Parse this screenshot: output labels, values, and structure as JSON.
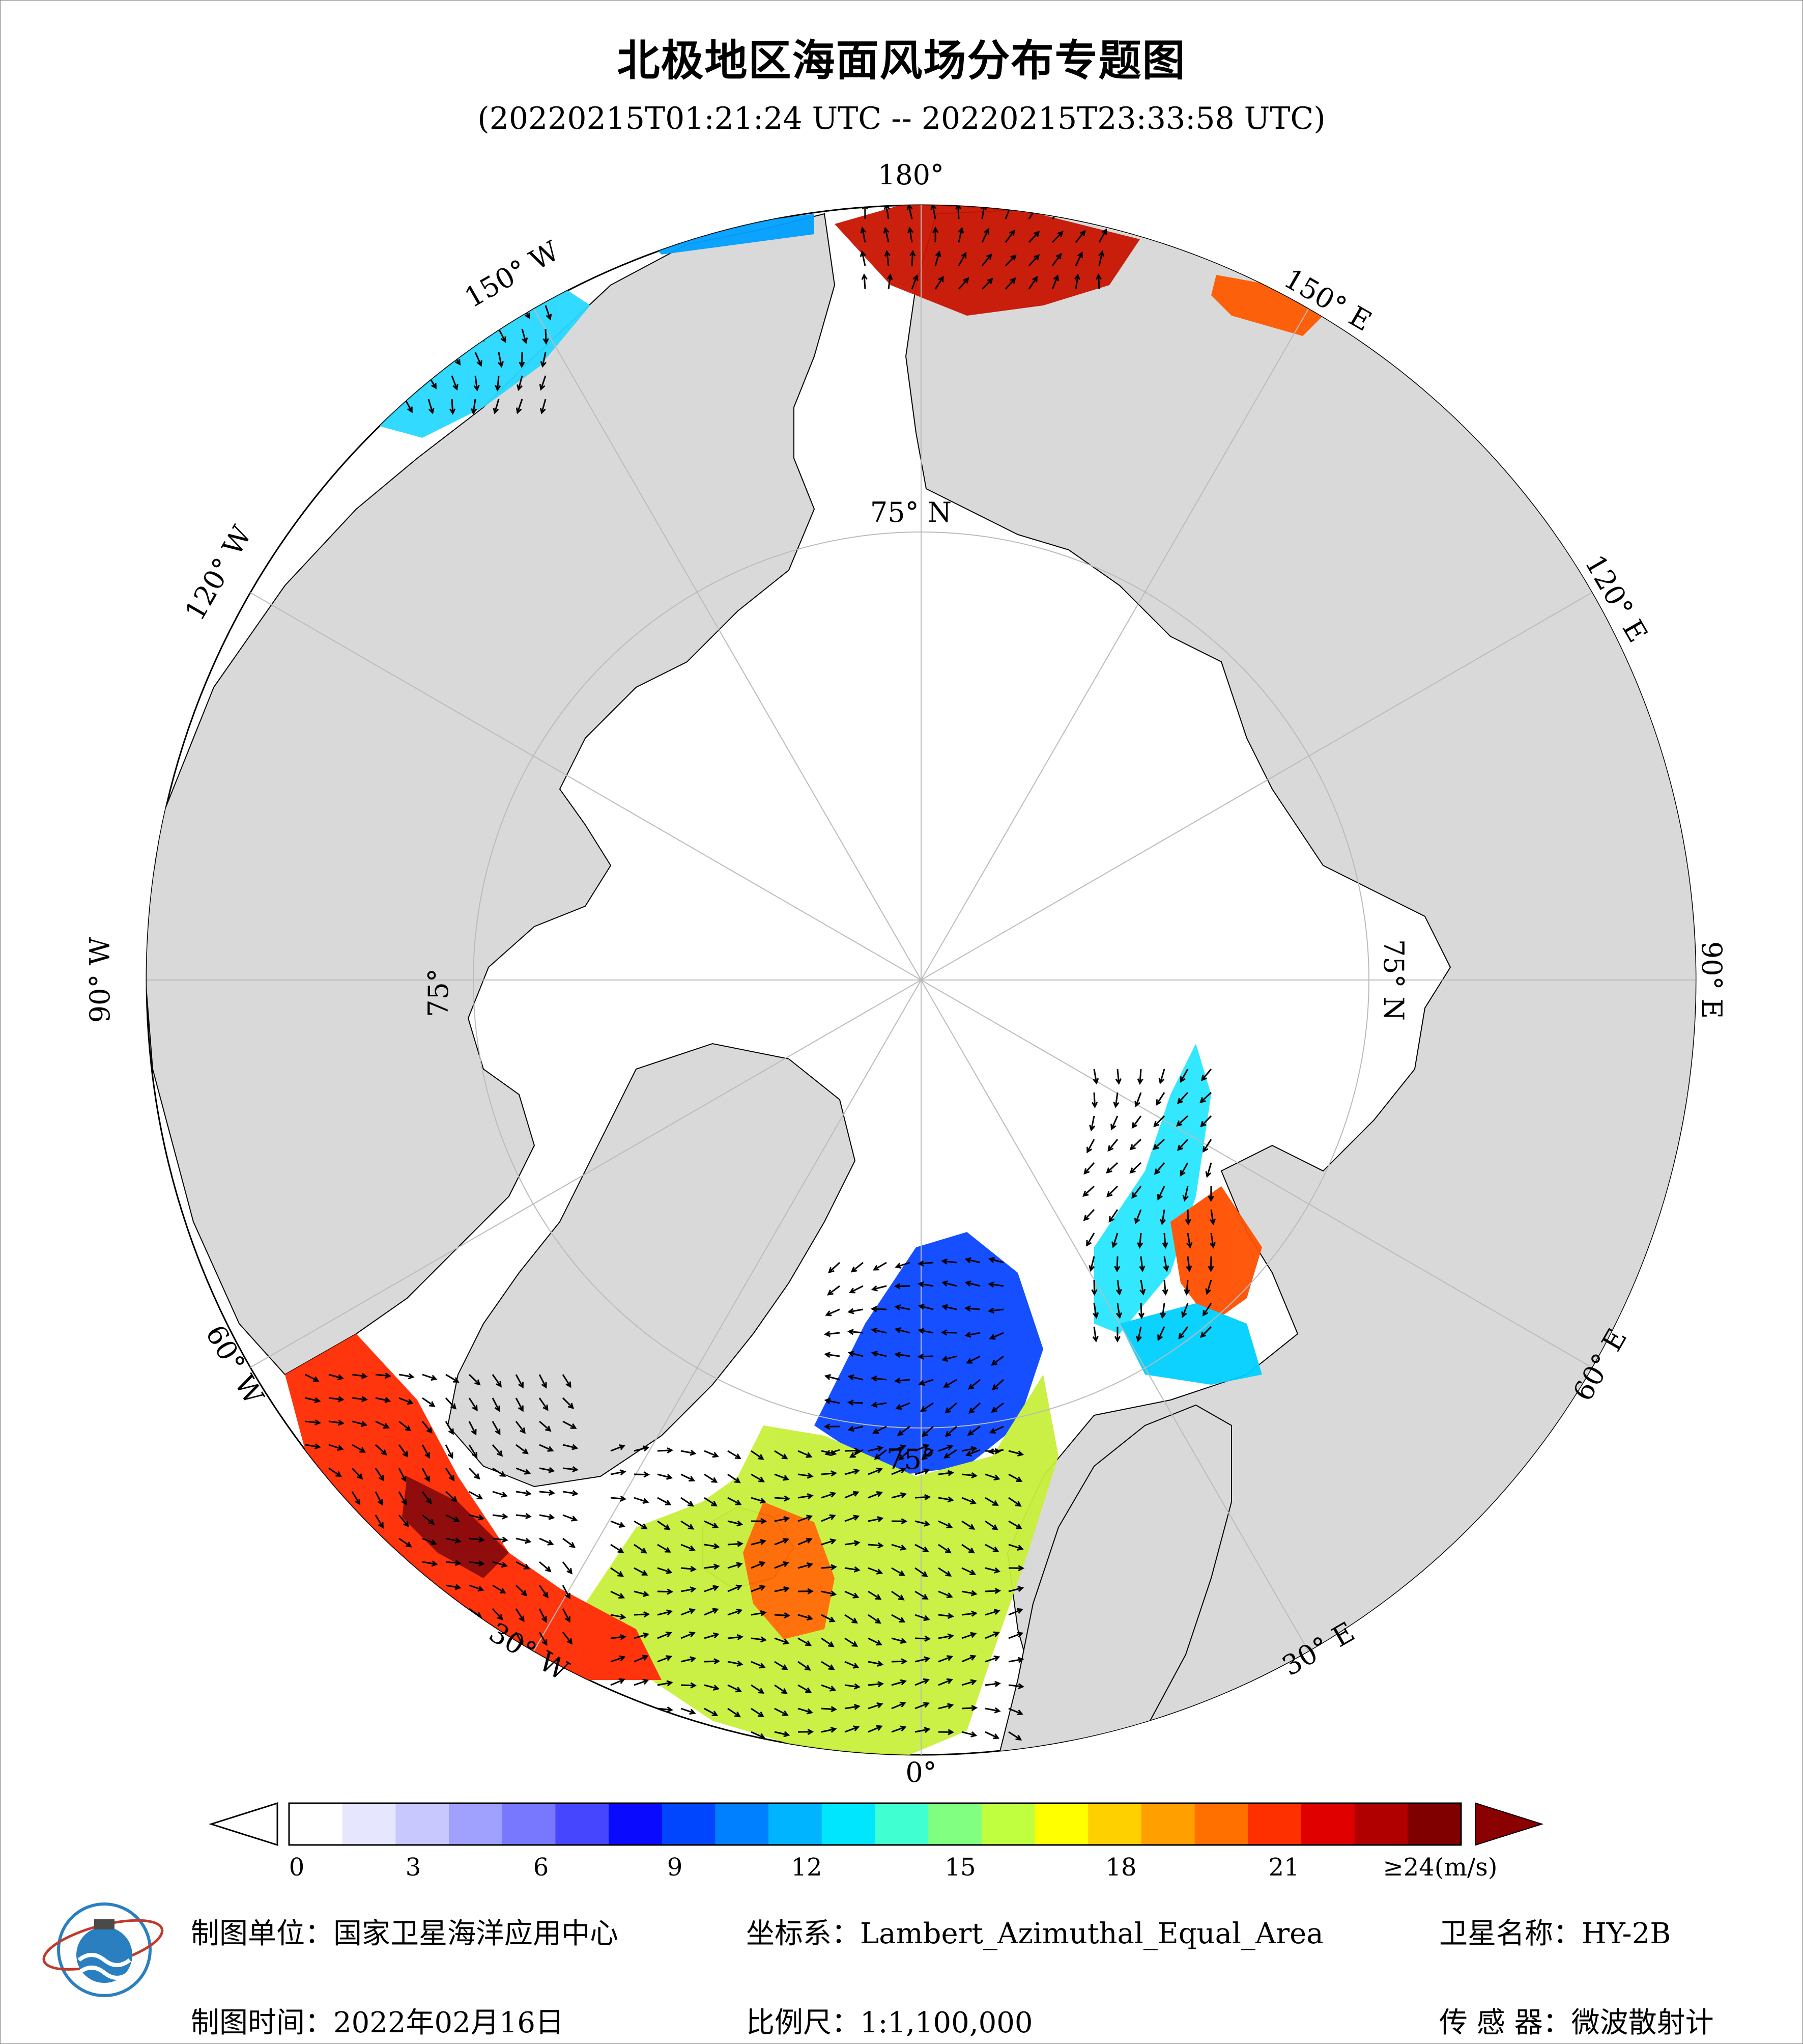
{
  "title": "北极地区海面风场分布专题图",
  "time_range": "(20220215T01:21:24 UTC -- 20220215T23:33:58 UTC)",
  "graticule": {
    "longitude_labels": [
      "180°",
      "150° E",
      "120° E",
      "90° E",
      "60° E",
      "30° E",
      "0°",
      "30° W",
      "60° W",
      "90° W",
      "120° W",
      "150° W"
    ],
    "latitude_labels": [
      "75° N",
      "75° N",
      "75°",
      "75°"
    ]
  },
  "colorbar": {
    "unit": "(m/s)",
    "ticks": [
      "0",
      "3",
      "6",
      "9",
      "12",
      "15",
      "18",
      "21",
      "≥24"
    ],
    "colors": [
      "#ffffff",
      "#e6e6ff",
      "#c8c8ff",
      "#a0a0ff",
      "#7878ff",
      "#4646ff",
      "#0a0aff",
      "#0046ff",
      "#0080ff",
      "#00b4ff",
      "#00e6ff",
      "#40ffd0",
      "#80ff80",
      "#c0ff40",
      "#ffff00",
      "#ffd000",
      "#ffa000",
      "#ff7000",
      "#ff3000",
      "#e00000",
      "#b00000",
      "#800000"
    ],
    "overflow_color": "#8b0000"
  },
  "map_colors": {
    "land": "#d9d9d9",
    "sea_ice": "#ffffff",
    "graticule": "#bbbbbb"
  },
  "footer": {
    "unit_label": "制图单位：国家卫星海洋应用中心",
    "date_label": "制图时间：2022年02月16日",
    "projection_label": "坐标系：Lambert_Azimuthal_Equal_Area",
    "scale_label": "比例尺：1:1,100,000",
    "satellite_label": "卫星名称：HY-2B",
    "sensor_label": "传 感 器：微波散射计"
  }
}
